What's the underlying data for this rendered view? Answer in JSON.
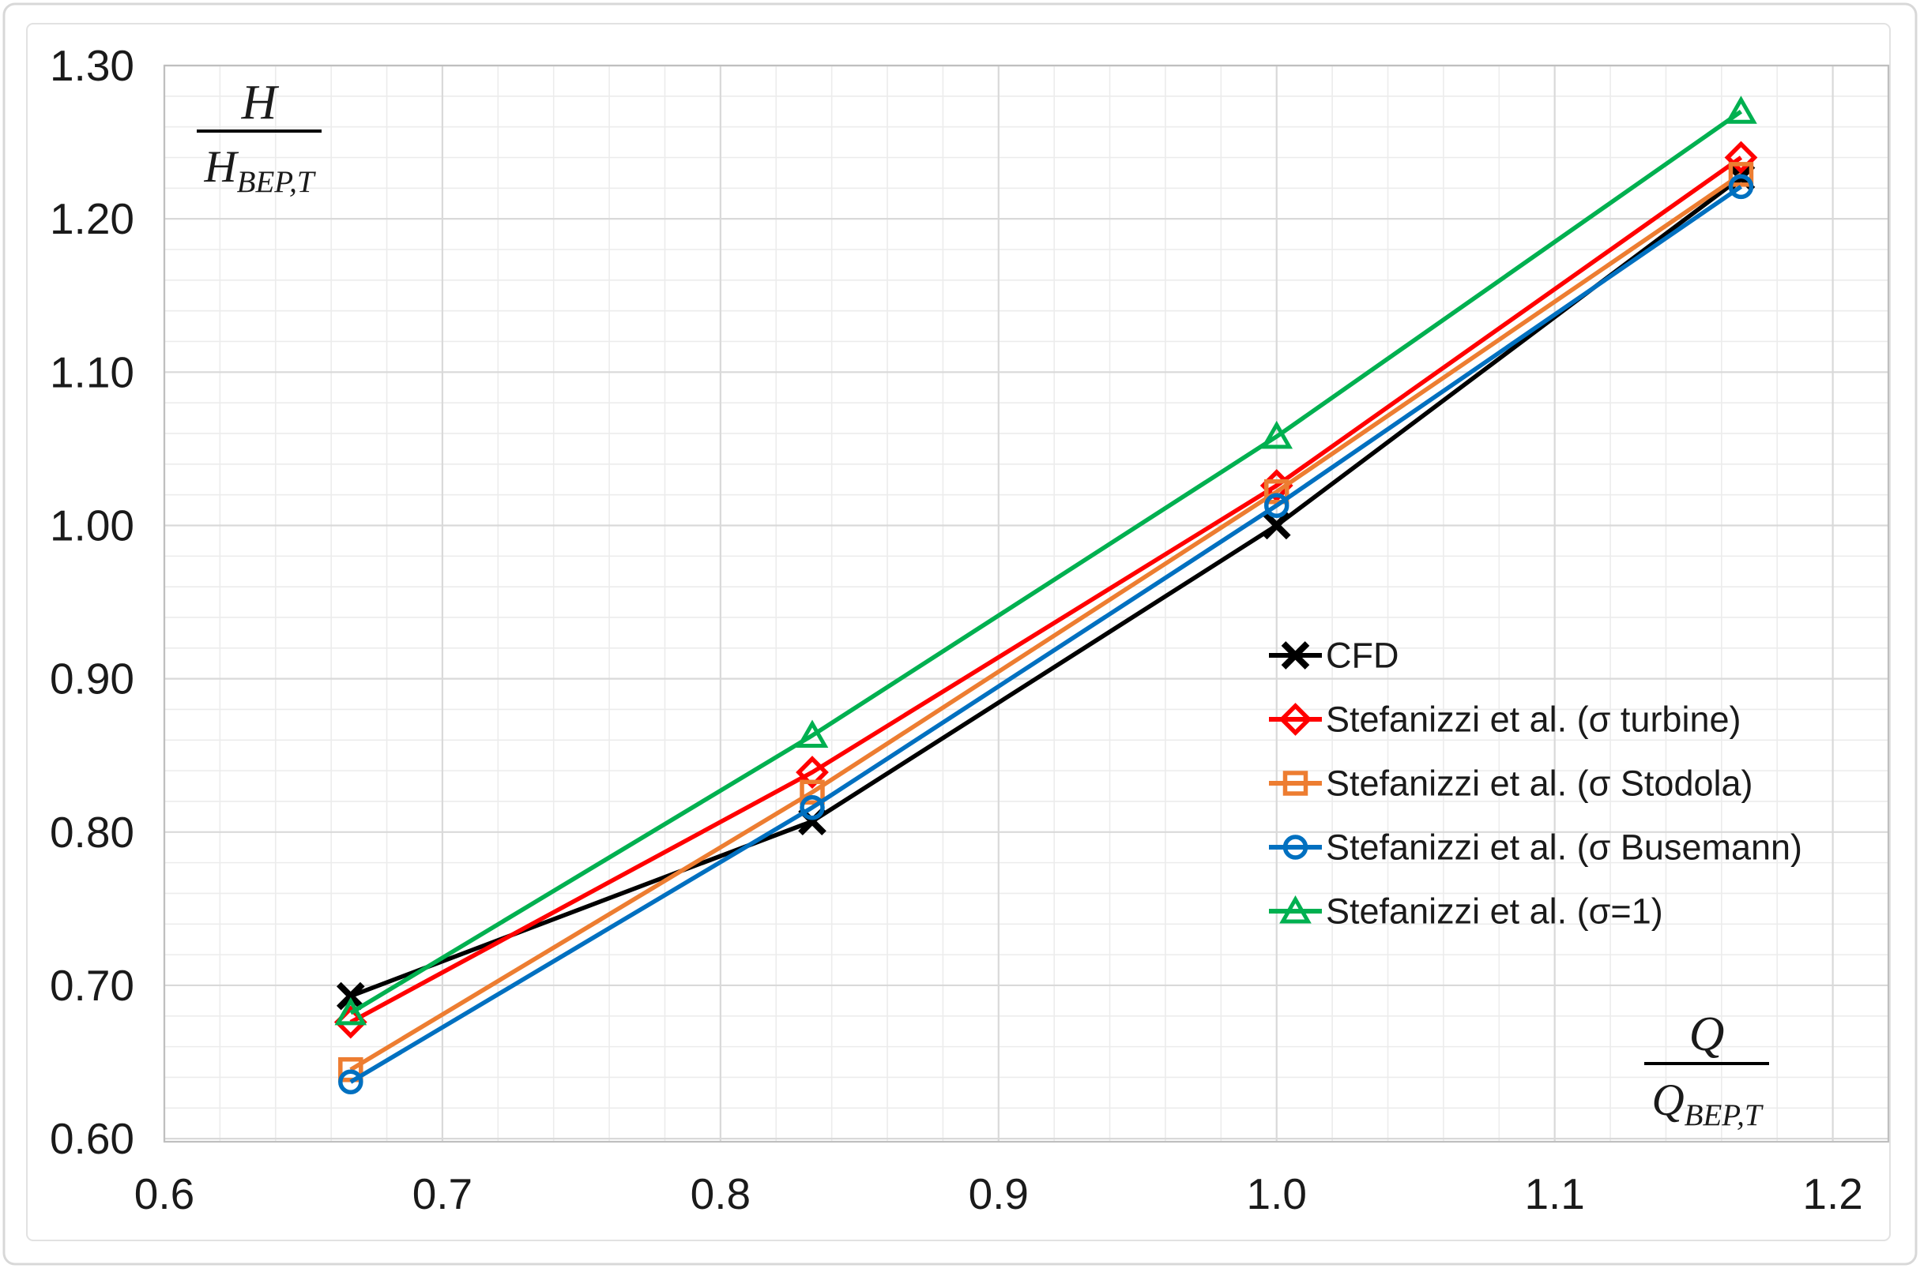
{
  "figure": {
    "background": "#ffffff",
    "outer_border_color": "#d8d8d8",
    "chart_frame_color": "#e2e2e2",
    "text_color": "#1a1a1a"
  },
  "chart_data": {
    "type": "line",
    "x": [
      0.667,
      0.833,
      1.0,
      1.167
    ],
    "series": [
      {
        "name": "CFD",
        "marker": "x",
        "color": "#000000",
        "values": [
          0.693,
          0.807,
          1.0,
          1.227
        ]
      },
      {
        "name": "Stefanizzi et al. (σ turbine)",
        "marker": "diamond",
        "color": "#ff0000",
        "values": [
          0.676,
          0.839,
          1.026,
          1.24
        ]
      },
      {
        "name": "Stefanizzi et al. (σ Stodola)",
        "marker": "square",
        "color": "#ed7d31",
        "values": [
          0.645,
          0.826,
          1.022,
          1.229
        ]
      },
      {
        "name": "Stefanizzi et al. (σ Busemann)",
        "marker": "circle",
        "color": "#0070c0",
        "values": [
          0.637,
          0.816,
          1.013,
          1.221
        ]
      },
      {
        "name": "Stefanizzi et al. (σ=1)",
        "marker": "triangle",
        "color": "#00b050",
        "values": [
          0.682,
          0.863,
          1.058,
          1.27
        ]
      }
    ],
    "x_axis": {
      "min": 0.6,
      "max": 1.22,
      "major_step": 0.1,
      "minor_step": 0.02,
      "ticks": [
        0.6,
        0.7,
        0.8,
        0.9,
        1.0,
        1.1,
        1.2
      ],
      "tick_labels": [
        "0.6",
        "0.7",
        "0.8",
        "0.9",
        "1.0",
        "1.1",
        "1.2"
      ],
      "title": {
        "numerator": "Q",
        "denominator_base": "Q",
        "denominator_sub": "BEP,T"
      }
    },
    "y_axis": {
      "min": 0.598,
      "max": 1.3,
      "major_step": 0.1,
      "minor_step": 0.02,
      "ticks": [
        1.3,
        1.2,
        1.1,
        1.0,
        0.9,
        0.8,
        0.7,
        0.6
      ],
      "tick_labels": [
        "1.30",
        "1.20",
        "1.10",
        "1.00",
        "0.90",
        "0.80",
        "0.70",
        "0.60"
      ],
      "title": {
        "numerator": "H",
        "denominator_base": "H",
        "denominator_sub": "BEP,T"
      }
    },
    "grid": {
      "major_color": "#d9d9d9",
      "minor_color": "#ececec",
      "plot_border_color": "#bfbfbf",
      "minor_on": true
    },
    "legend": {
      "position": "inside-right",
      "items": [
        "CFD",
        "Stefanizzi et al. (σ turbine)",
        "Stefanizzi et al. (σ Stodola)",
        "Stefanizzi et al. (σ Busemann)",
        "Stefanizzi et al. (σ=1)"
      ]
    }
  }
}
